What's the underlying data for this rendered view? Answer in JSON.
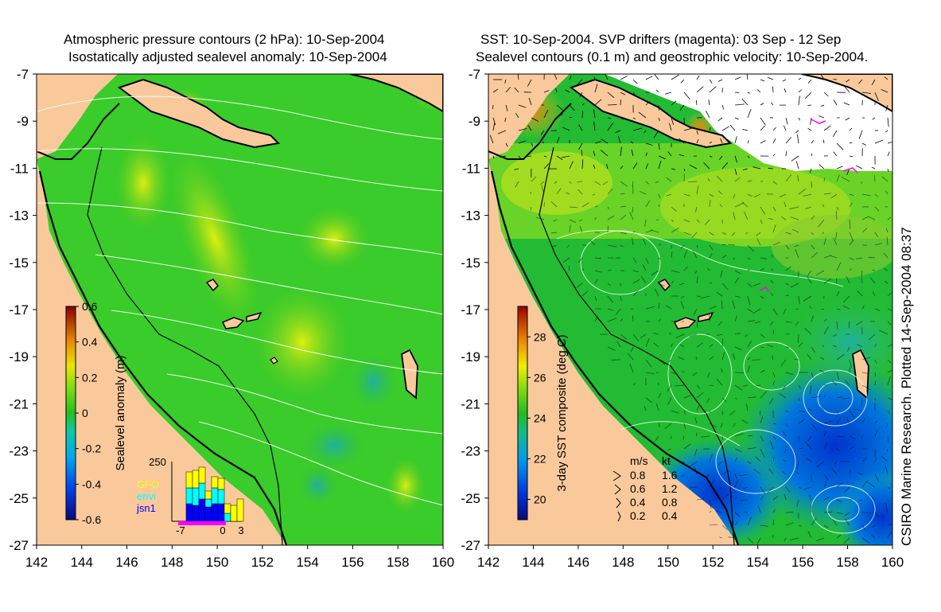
{
  "left_panel": {
    "title_line1": "Atmospheric pressure contours (2 hPa): 10-Sep-2004",
    "title_line2": "Isostatically adjusted sealevel anomaly: 10-Sep-2004",
    "colorbar": {
      "label": "Sealevel anomaly (m)",
      "ticks": [
        "0.6",
        "0.4",
        "0.2",
        "0",
        "-0.2",
        "-0.4",
        "-0.6"
      ],
      "range": [
        -0.6,
        0.6
      ]
    },
    "histogram": {
      "y_top_label": "250",
      "x_labels": [
        "-7",
        "0",
        "3"
      ],
      "legend": [
        {
          "name": "GFO",
          "color": "#ffff00"
        },
        {
          "name": "envi",
          "color": "#00ffff"
        },
        {
          "name": "jsn1",
          "color": "#0000ff"
        }
      ]
    }
  },
  "right_panel": {
    "title_line1": "SST: 10-Sep-2004. SVP drifters (magenta): 03 Sep - 12 Sep",
    "title_line2": "Sealevel contours (0.1 m) and geostrophic velocity: 10-Sep-2004.",
    "colorbar": {
      "label": "3-day SST composite (deg C)",
      "ticks": [
        "28",
        "26",
        "24",
        "22",
        "20"
      ],
      "range": [
        19,
        29.5
      ]
    },
    "velocity_legend": {
      "header_ms": "m/s",
      "header_kt": "kt",
      "rows": [
        {
          "ms": "0.8",
          "kt": "1.6"
        },
        {
          "ms": "0.6",
          "kt": "1.2"
        },
        {
          "ms": "0.4",
          "kt": "0.8"
        },
        {
          "ms": "0.2",
          "kt": "0.4"
        }
      ]
    }
  },
  "axes": {
    "lat_ticks": [
      "-7",
      "-9",
      "-11",
      "-13",
      "-15",
      "-17",
      "-19",
      "-21",
      "-23",
      "-25",
      "-27"
    ],
    "lon_ticks": [
      "142",
      "144",
      "146",
      "148",
      "150",
      "152",
      "154",
      "156",
      "158",
      "160"
    ],
    "lat_range": [
      -27,
      -7
    ],
    "lon_range": [
      142,
      160
    ]
  },
  "credit": "CSIRO Marine Research. Plotted 14-Sep-2004 08:37",
  "colors": {
    "land": "#f9c99c",
    "ocean_green": "#33cc22",
    "coast": "#000000",
    "contour": "#ffffff"
  }
}
